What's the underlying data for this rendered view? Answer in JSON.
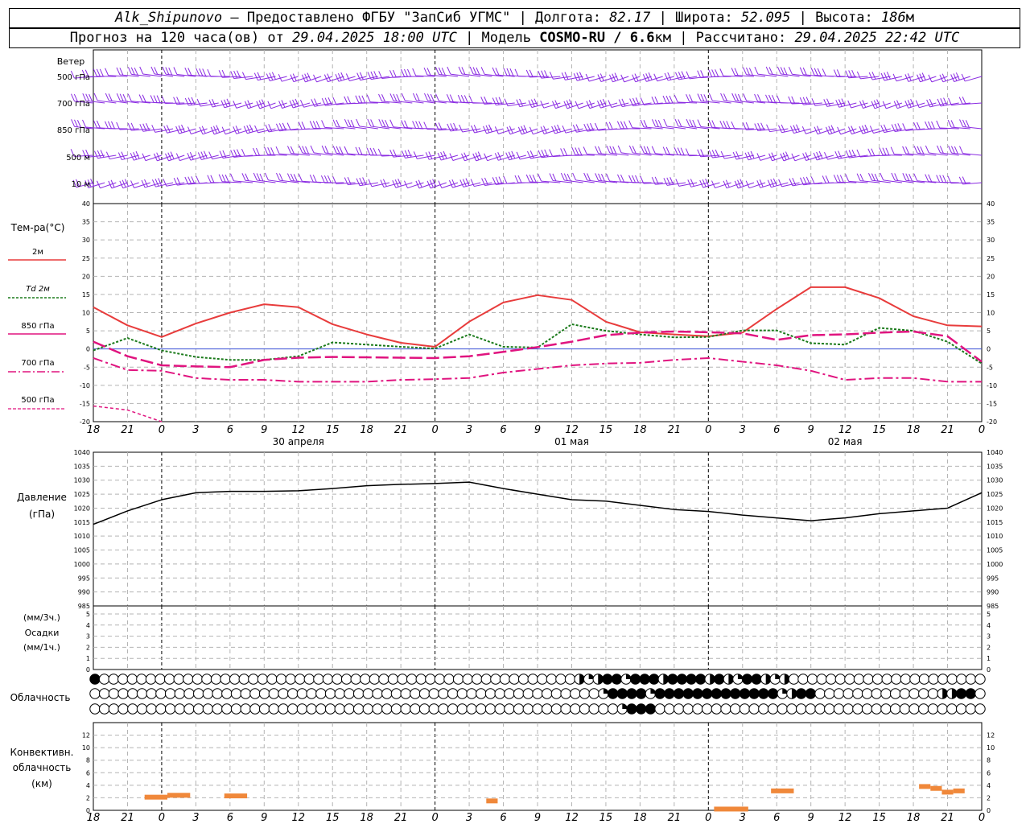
{
  "header": {
    "station": "Alk_Shipunovo",
    "provider": " – Предоставлено ФГБУ \"ЗапСиб УГМС\" | Долгота: ",
    "longitude": "82.17",
    "lat_label": " | Широта: ",
    "latitude": "52.095",
    "alt_label": " | Высота: ",
    "altitude": "186",
    "alt_unit": "м",
    "forecast_prefix": "Прогноз на 120 часа(ов) от ",
    "forecast_time": "29.04.2025 18:00 UTC",
    "model_label": " | Модель ",
    "model_name": "COSMO-RU / 6.6",
    "model_unit": "км",
    "calc_label": " | Рассчитано: ",
    "calc_time": "29.04.2025 22:42 UTC"
  },
  "colors": {
    "wind": "#8a2be2",
    "t2m": "#e83c3c",
    "td2m": "#1a7a1a",
    "t850": "#e0147f",
    "t700": "#e0147f",
    "t500": "#e0147f",
    "pressure": "#000000",
    "convective": "#f0883a",
    "grid": "#b4b4b4"
  },
  "wind_panel": {
    "title": "Ветер",
    "levels": [
      "500 гПа",
      "700 гПа",
      "850 гПа",
      "500 м",
      "10 м"
    ]
  },
  "temp_panel": {
    "title": "Тем-ра(°C)",
    "legend": [
      "2м",
      "Td 2м",
      "850 гПа",
      "700 гПа",
      "500 гПа"
    ]
  },
  "pressure_panel": {
    "title": "Давление",
    "unit": "(гПа)"
  },
  "precip_panel": {
    "label1": "(мм/3ч.)",
    "label2": "Осадки",
    "label3": "(мм/1ч.)"
  },
  "cloud_panel": {
    "title": "Облачность"
  },
  "conv_panel": {
    "title1": "Конвективн.",
    "title2": "облачность",
    "unit": "(км)"
  },
  "x_axis": {
    "tick_labels": [
      "18",
      "21",
      "0",
      "3",
      "6",
      "9",
      "12",
      "15",
      "18",
      "21",
      "0",
      "3",
      "6",
      "9",
      "12",
      "15",
      "18",
      "21",
      "0",
      "3",
      "6",
      "9",
      "12",
      "15",
      "18",
      "21",
      "0"
    ],
    "dates": [
      "30 апреля",
      "01 мая",
      "02 мая"
    ]
  },
  "chart_data": [
    {
      "type": "line",
      "title": "Тем-ра(°C)",
      "x_hours": [
        0,
        3,
        6,
        9,
        12,
        15,
        18,
        21,
        24,
        27,
        30,
        33,
        36,
        39,
        42,
        45,
        48,
        51,
        54,
        57,
        60,
        63,
        66,
        69,
        72,
        75,
        78
      ],
      "ylim": [
        -20,
        40
      ],
      "yticks": [
        -20,
        -15,
        -10,
        -5,
        0,
        5,
        10,
        15,
        20,
        25,
        30,
        35,
        40
      ],
      "series": [
        {
          "name": "2м",
          "values": [
            11.5,
            6.5,
            3.3,
            7,
            10,
            12.3,
            11.5,
            6.8,
            4,
            1.7,
            0.6,
            7.5,
            12.8,
            14.8,
            13.5,
            7.5,
            4.6,
            4,
            3.5,
            4.5,
            11,
            17,
            17,
            14,
            9,
            6.5,
            6.2
          ]
        },
        {
          "name": "Td 2м",
          "values": [
            -0.4,
            3,
            -0.4,
            -2.2,
            -3,
            -3,
            -2,
            1.8,
            1.2,
            0.6,
            0.1,
            4,
            0.6,
            0.4,
            6.8,
            5,
            4,
            3.2,
            3.3,
            5.1,
            5.1,
            1.6,
            1.2,
            5.8,
            5,
            2,
            -4
          ]
        },
        {
          "name": "850 гПа",
          "values": [
            2,
            -2,
            -4.5,
            -4.8,
            -5,
            -3,
            -2.4,
            -2.2,
            -2.3,
            -2.4,
            -2.5,
            -2,
            -0.8,
            0.5,
            2,
            3.8,
            4.5,
            4.8,
            4.6,
            4.3,
            2.5,
            3.8,
            4,
            4.5,
            4.8,
            3.5,
            -3.5
          ]
        },
        {
          "name": "700 гПа",
          "values": [
            -2.5,
            -5.8,
            -6,
            -8,
            -8.5,
            -8.5,
            -9,
            -9,
            -9,
            -8.5,
            -8.3,
            -8,
            -6.5,
            -5.5,
            -4.5,
            -4,
            -3.8,
            -3,
            -2.5,
            -3.5,
            -4.5,
            -6,
            -8.5,
            -8,
            -8,
            -9,
            -9
          ]
        },
        {
          "name": "500 гПа",
          "values": [
            -15.7,
            -16.8,
            -20.5
          ]
        }
      ]
    },
    {
      "type": "line",
      "title": "Давление",
      "ylabel": "(гПа)",
      "x_hours": [
        0,
        3,
        6,
        9,
        12,
        15,
        18,
        21,
        24,
        27,
        30,
        33,
        36,
        39,
        42,
        45,
        48,
        51,
        54,
        57,
        60,
        63,
        66,
        69,
        72,
        75,
        78
      ],
      "ylim": [
        985,
        1040
      ],
      "yticks": [
        985,
        990,
        995,
        1000,
        1005,
        1010,
        1015,
        1020,
        1025,
        1030,
        1035,
        1040
      ],
      "values": [
        1014.2,
        1019,
        1023,
        1025.5,
        1026,
        1026,
        1026.2,
        1027,
        1028,
        1028.5,
        1028.8,
        1029.3,
        1027,
        1025,
        1023,
        1022.5,
        1021,
        1019.5,
        1018.8,
        1017.5,
        1016.5,
        1015.5,
        1016.5,
        1018,
        1019,
        1020,
        1025.5
      ]
    },
    {
      "type": "bar",
      "title": "Осадки",
      "ylim": [
        0,
        5
      ],
      "yticks": [
        0,
        1,
        2,
        3,
        4,
        5
      ],
      "values": []
    },
    {
      "type": "bar",
      "title": "Конвективн. облачность",
      "ylabel": "(км)",
      "ylim": [
        0,
        14
      ],
      "yticks": [
        0,
        2,
        4,
        6,
        8,
        10,
        12
      ],
      "segments": [
        {
          "from_h": 4.5,
          "to_h": 6.5,
          "km": 2.1
        },
        {
          "from_h": 6.5,
          "to_h": 8.5,
          "km": 2.4
        },
        {
          "from_h": 11.5,
          "to_h": 13.5,
          "km": 2.3
        },
        {
          "from_h": 34.5,
          "to_h": 35.5,
          "km": 1.5
        },
        {
          "from_h": 54.5,
          "to_h": 57.5,
          "km": 0.2
        },
        {
          "from_h": 59.5,
          "to_h": 61.5,
          "km": 3.1
        },
        {
          "from_h": 72.5,
          "to_h": 73.5,
          "km": 3.8
        },
        {
          "from_h": 73.5,
          "to_h": 74.5,
          "km": 3.5
        },
        {
          "from_h": 74.5,
          "to_h": 75.5,
          "km": 2.9
        },
        {
          "from_h": 75.5,
          "to_h": 76.5,
          "km": 3.1
        }
      ]
    }
  ],
  "cloud_rows": {
    "upper": "F000000000000000000000000000000000000000000000000000HQHFFQFFFHFFFFHFHQFFHQH000000000000000000000",
    "middle": "000000000000000000000000000000000000000000000000000000QFFFFQFFFFFFFFFFFFFQHFF0000000000000HHFF0",
    "lower": "00000000000000000000000000000000000000000000000000000000QFFF00000000000000000000000000000000000"
  }
}
